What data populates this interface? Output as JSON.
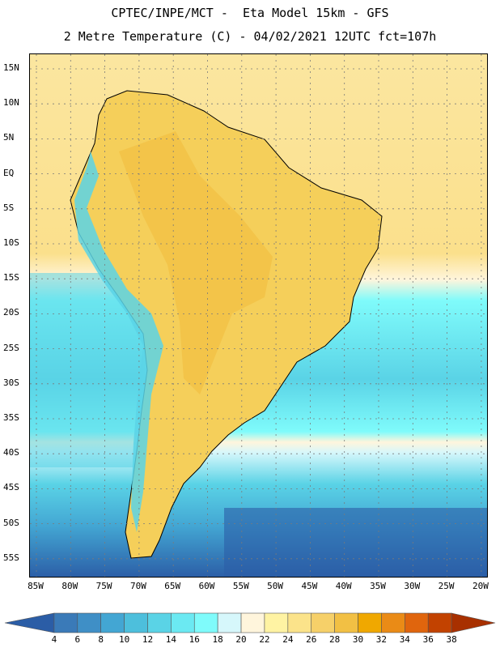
{
  "header": {
    "title_line1": "CPTEC/INPE/MCT -  Eta Model 15km - GFS",
    "title_line2": "2 Metre Temperature (C) - 04/02/2021 12UTC fct=107h"
  },
  "map": {
    "lat_labels": [
      "15N",
      "10N",
      "5N",
      "EQ",
      "5S",
      "10S",
      "15S",
      "20S",
      "25S",
      "30S",
      "35S",
      "40S",
      "45S",
      "50S",
      "55S"
    ],
    "lon_labels": [
      "85W",
      "80W",
      "75W",
      "70W",
      "65W",
      "60W",
      "55W",
      "50W",
      "45W",
      "40W",
      "35W",
      "30W",
      "25W",
      "20W"
    ],
    "gridlines": true,
    "land_color": "#f5cf5a",
    "coast_color": "#000000"
  },
  "colorbar": {
    "labels": [
      "4",
      "6",
      "8",
      "10",
      "12",
      "14",
      "16",
      "18",
      "20",
      "22",
      "24",
      "26",
      "28",
      "30",
      "32",
      "34",
      "36",
      "38"
    ],
    "colors": [
      "#2b5da6",
      "#3a7ab8",
      "#3f8fc6",
      "#43a6d3",
      "#4dbfdc",
      "#5ad3e6",
      "#6be9f2",
      "#7ffbfb",
      "#d6f7fb",
      "#fff5dc",
      "#fff3a3",
      "#fbe38a",
      "#f6d069",
      "#f2c044",
      "#f0a800",
      "#ea8b16",
      "#e0650d",
      "#c24200",
      "#a83000"
    ]
  }
}
